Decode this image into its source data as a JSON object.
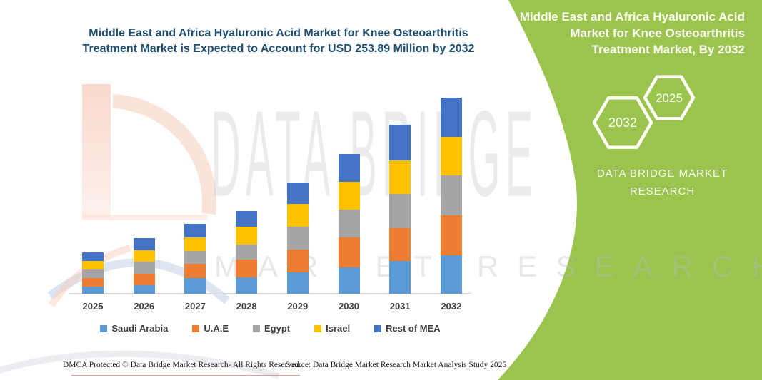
{
  "chart_data": {
    "type": "bar",
    "stacked": true,
    "title": "Middle East and Africa Hyaluronic Acid Market for Knee Osteoarthritis Treatment Market is Expected to Account for USD 253.89 Million by 2032",
    "value_unit": "USD Million",
    "categories": [
      "2025",
      "2026",
      "2027",
      "2028",
      "2029",
      "2030",
      "2031",
      "2032"
    ],
    "series": [
      {
        "name": "Saudi Arabia",
        "color": "#5B9BD5",
        "values": [
          9.2,
          11.4,
          20.0,
          21.6,
          27.7,
          34.5,
          42.2,
          49.9
        ]
      },
      {
        "name": "U.A.E",
        "color": "#ED7D31",
        "values": [
          11.4,
          14.1,
          18.5,
          22.4,
          29.3,
          38.4,
          42.5,
          51.7
        ]
      },
      {
        "name": "Egypt",
        "color": "#A5A5A5",
        "values": [
          11.1,
          16.0,
          16.9,
          20.0,
          30.2,
          36.4,
          44.6,
          51.4
        ]
      },
      {
        "name": "Israel",
        "color": "#FFC000",
        "values": [
          10.4,
          14.8,
          17.5,
          23.1,
          29.2,
          36.0,
          43.8,
          50.1
        ]
      },
      {
        "name": "Rest of MEA",
        "color": "#4472C4",
        "values": [
          11.1,
          15.4,
          17.8,
          19.9,
          28.1,
          35.4,
          45.5,
          50.8
        ]
      }
    ],
    "totals": [
      53.2,
      71.7,
      90.7,
      107.0,
      144.5,
      180.7,
      218.6,
      253.9
    ],
    "final_value_label": "USD 253.89 Million",
    "legend_position": "bottom",
    "y_axis_visible": false,
    "gridlines": false,
    "axis_color": "#D9D9D9"
  },
  "side_panel": {
    "title": "Middle East and Africa Hyaluronic Acid\nMarket for Knee Osteoarthritis\nTreatment Market, By 2032",
    "hexagons": [
      {
        "label": "2032"
      },
      {
        "label": "2025"
      }
    ],
    "brand": "DATA BRIDGE MARKET\nRESEARCH",
    "accent_color": "#9AC44E"
  },
  "watermark": {
    "line1": "DATA BRIDGE",
    "line2": "MARKET RESEARCH"
  },
  "footer": {
    "left": "DMCA Protected © Data Bridge Market Research-  All Rights Reserved.",
    "source": "Source: Data Bridge Market Research  Market Analysis Study 2025"
  }
}
